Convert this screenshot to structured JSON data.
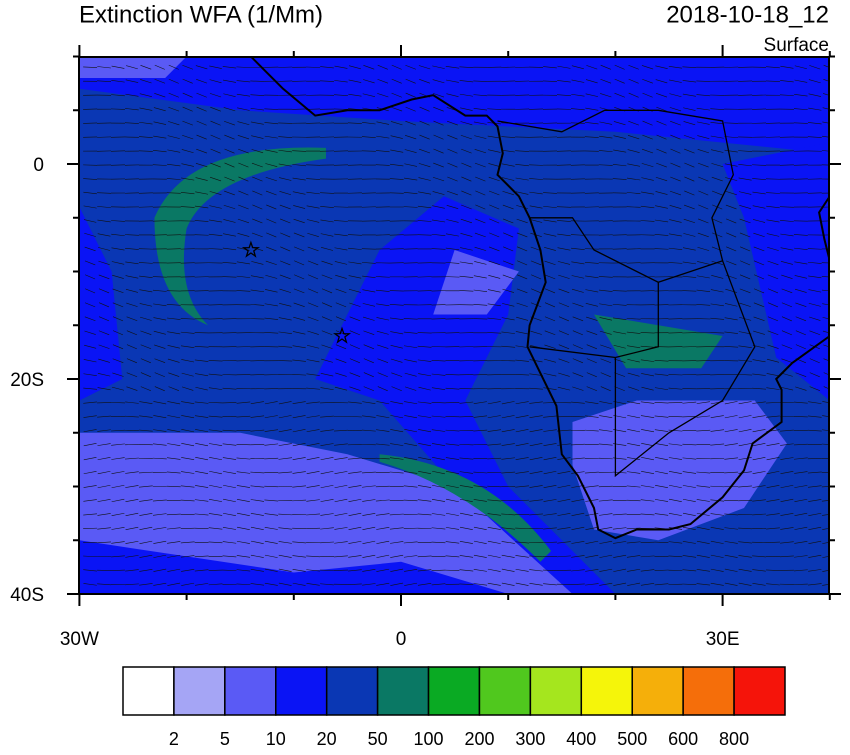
{
  "header": {
    "title": "Extinction WFA (1/Mm)",
    "date": "2018-10-18_12",
    "level": "Surface"
  },
  "axes": {
    "y_labels": [
      "0",
      "20S",
      "40S"
    ],
    "x_labels": [
      "30W",
      "0",
      "30E"
    ]
  },
  "colorbar": {
    "labels": [
      "2",
      "5",
      "10",
      "20",
      "50",
      "100",
      "200",
      "300",
      "400",
      "500",
      "600",
      "800"
    ],
    "colors": [
      "#ffffff",
      "#a5a5f5",
      "#5a5af5",
      "#0a14f5",
      "#0a37b4",
      "#0a7864",
      "#0aaa23",
      "#50c81e",
      "#a5e61e",
      "#f5f50a",
      "#f5af0a",
      "#f56e0a",
      "#f5140a"
    ]
  }
}
